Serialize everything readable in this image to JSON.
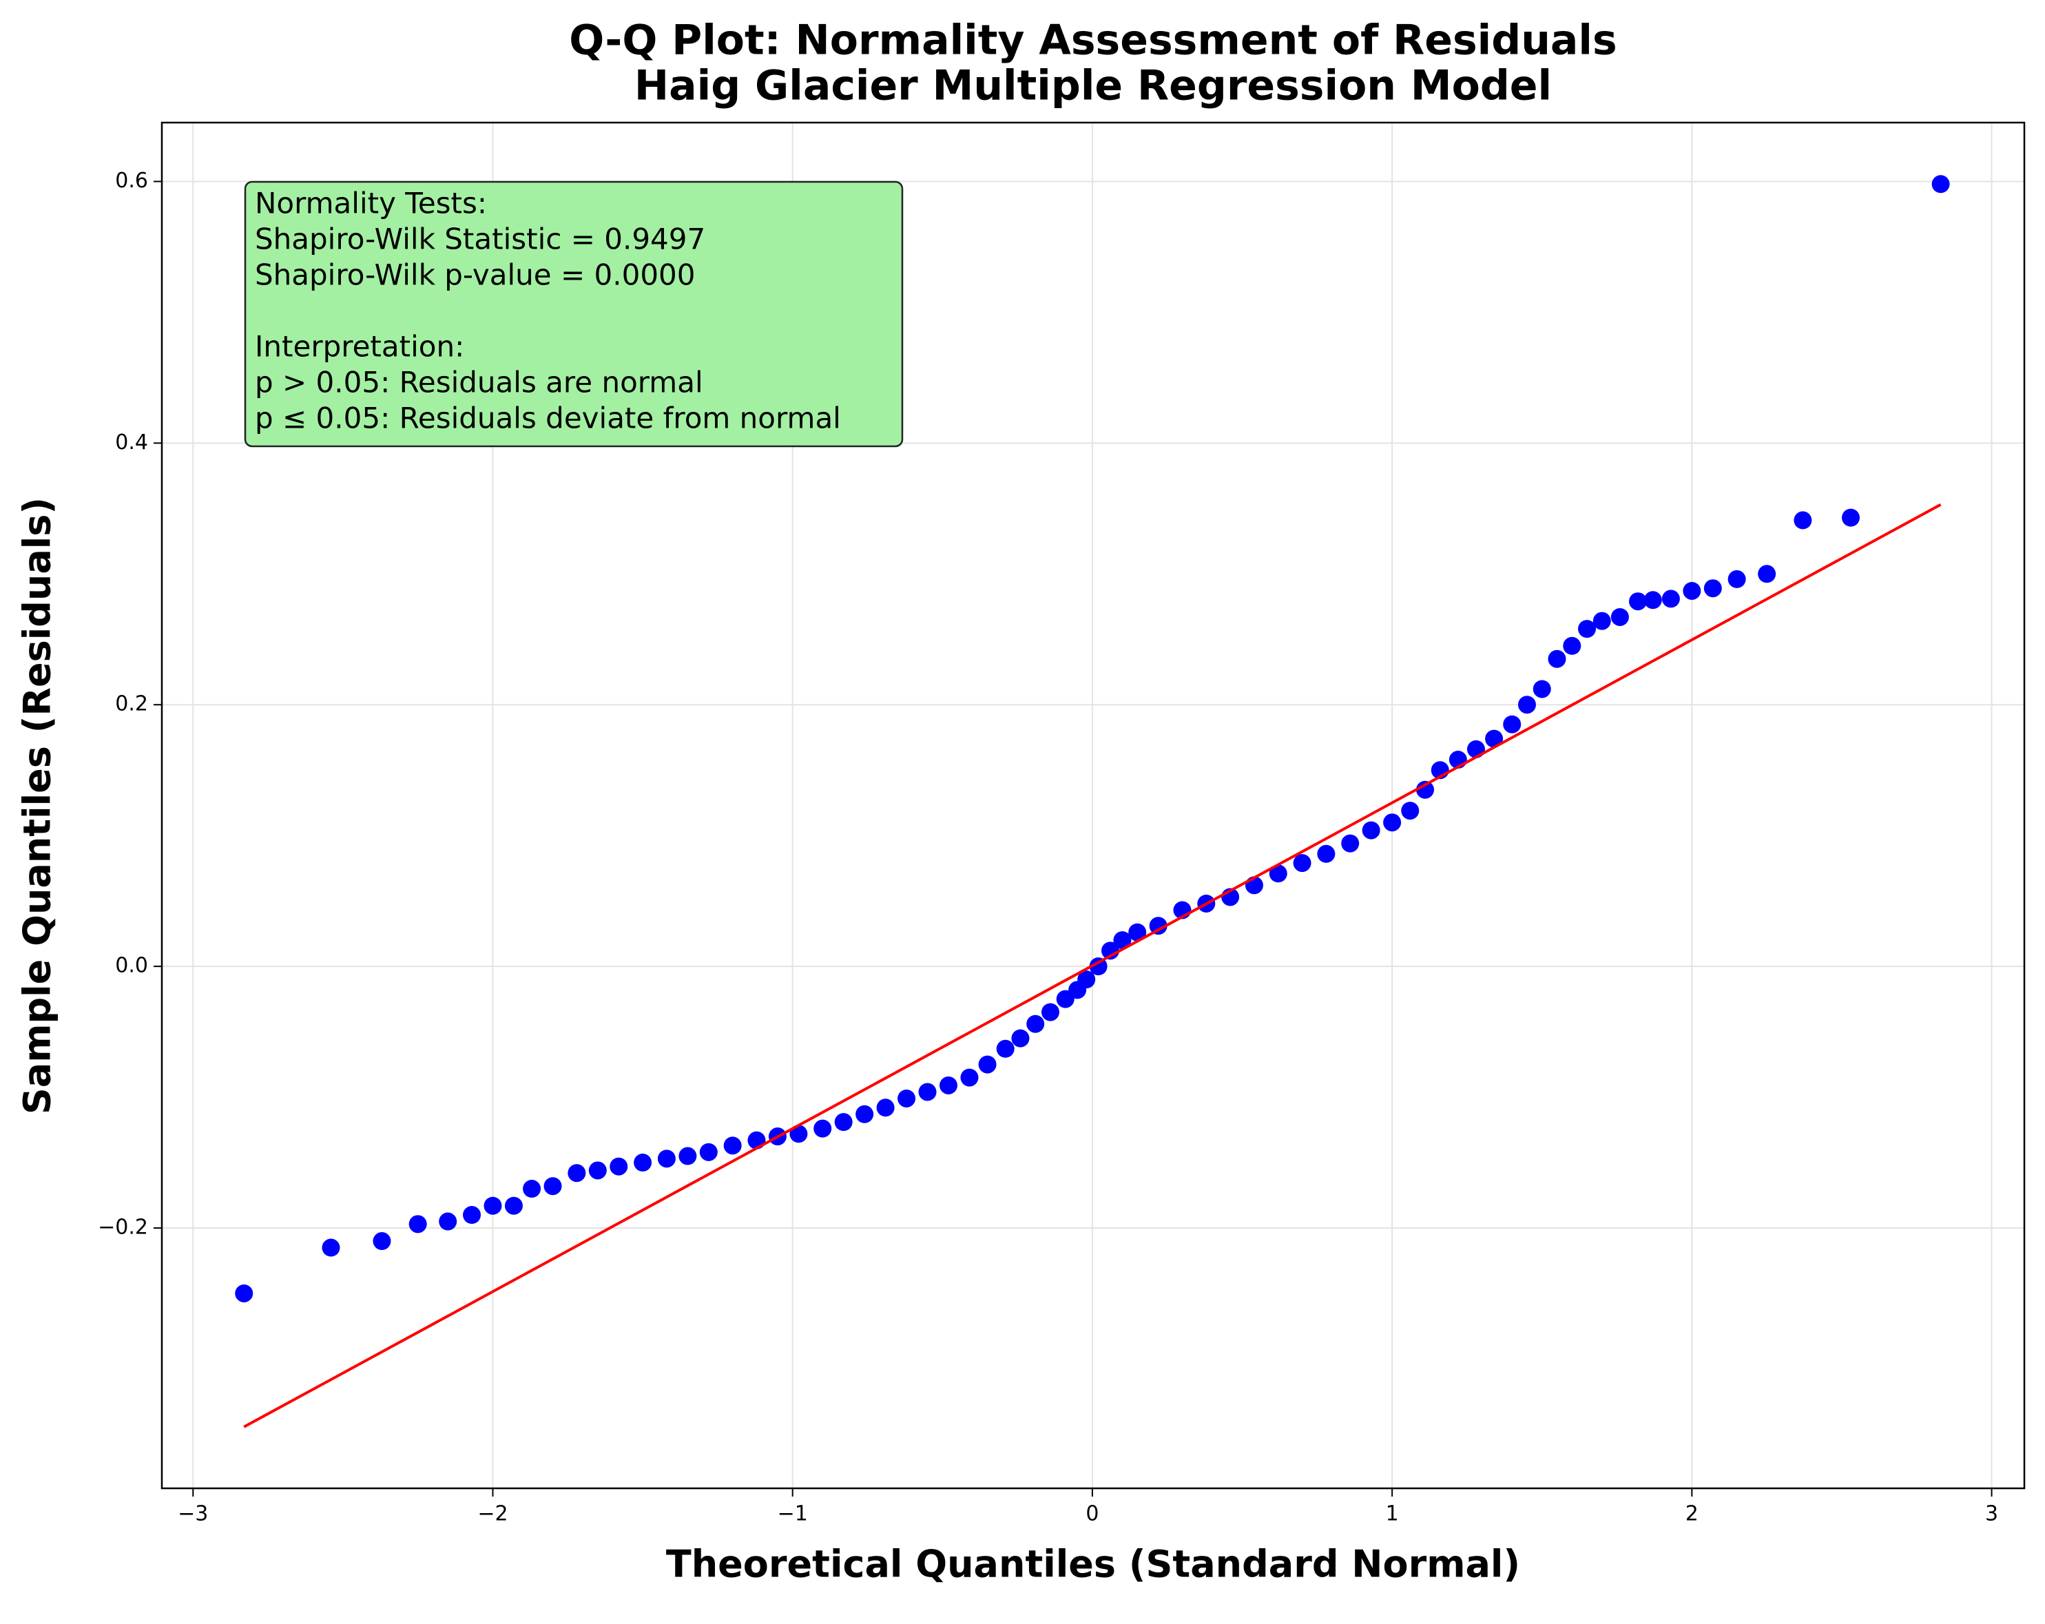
{
  "chart_data": {
    "type": "scatter",
    "title": [
      "Q-Q Plot: Normality Assessment of Residuals",
      "Haig Glacier Multiple Regression Model"
    ],
    "x_label": "Theoretical Quantiles (Standard Normal)",
    "y_label": "Sample Quantiles (Residuals)",
    "annotation": [
      [
        "Normality Tests:",
        "Shapiro-Wilk Statistic = 0.9497",
        "Shapiro-Wilk p-value = 0.0000"
      ],
      [
        "Interpretation:",
        "p > 0.05: Residuals are normal",
        "p ≤ 0.05: Residuals deviate from normal"
      ]
    ],
    "xlim": [
      -3.104,
      3.109
    ],
    "ylim": [
      -0.399,
      0.645
    ],
    "xticks": [
      {
        "value": -3,
        "label": "−3"
      },
      {
        "value": -2,
        "label": "−2"
      },
      {
        "value": -1,
        "label": "−1"
      },
      0,
      1,
      2,
      3
    ],
    "yticks": [
      {
        "value": -0.2,
        "label": "−0.2"
      },
      {
        "value": 0,
        "label": "0.0"
      },
      0.2,
      0.4,
      0.6
    ],
    "grid": true,
    "series": [
      {
        "style": "markers",
        "color": "#0000ff",
        "x": [
          -2.83,
          -2.54,
          -2.37,
          -2.25,
          -2.15,
          -2.07,
          -2.0,
          -1.93,
          -1.87,
          -1.8,
          -1.72,
          -1.65,
          -1.58,
          -1.5,
          -1.42,
          -1.35,
          -1.28,
          -1.2,
          -1.12,
          -1.05,
          -0.98,
          -0.9,
          -0.83,
          -0.76,
          -0.69,
          -0.62,
          -0.55,
          -0.48,
          -0.41,
          -0.35,
          -0.29,
          -0.24,
          -0.19,
          -0.14,
          -0.09,
          -0.05,
          -0.02,
          0.02,
          0.06,
          0.1,
          0.15,
          0.22,
          0.3,
          0.38,
          0.46,
          0.54,
          0.62,
          0.7,
          0.78,
          0.86,
          0.93,
          1.0,
          1.06,
          1.11,
          1.16,
          1.22,
          1.28,
          1.34,
          1.4,
          1.45,
          1.5,
          1.55,
          1.6,
          1.65,
          1.7,
          1.76,
          1.82,
          1.87,
          1.93,
          2.0,
          2.07,
          2.15,
          2.25,
          2.37,
          2.53,
          2.83
        ],
        "values": [
          -0.25,
          -0.215,
          -0.21,
          -0.197,
          -0.195,
          -0.19,
          -0.183,
          -0.183,
          -0.17,
          -0.168,
          -0.158,
          -0.156,
          -0.153,
          -0.15,
          -0.147,
          -0.145,
          -0.142,
          -0.137,
          -0.133,
          -0.13,
          -0.128,
          -0.124,
          -0.119,
          -0.113,
          -0.108,
          -0.101,
          -0.096,
          -0.091,
          -0.085,
          -0.075,
          -0.063,
          -0.055,
          -0.044,
          -0.035,
          -0.025,
          -0.018,
          -0.01,
          0.0,
          0.012,
          0.02,
          0.026,
          0.031,
          0.043,
          0.048,
          0.053,
          0.062,
          0.071,
          0.079,
          0.086,
          0.094,
          0.104,
          0.11,
          0.119,
          0.135,
          0.15,
          0.158,
          0.166,
          0.174,
          0.185,
          0.2,
          0.212,
          0.235,
          0.245,
          0.258,
          0.264,
          0.267,
          0.279,
          0.28,
          0.281,
          0.287,
          0.289,
          0.296,
          0.3,
          0.341,
          0.343,
          0.598
        ]
      },
      {
        "style": "line",
        "color": "#ff0000",
        "x": [
          -2.83,
          2.83
        ],
        "values": [
          -0.352,
          0.353
        ]
      }
    ]
  }
}
